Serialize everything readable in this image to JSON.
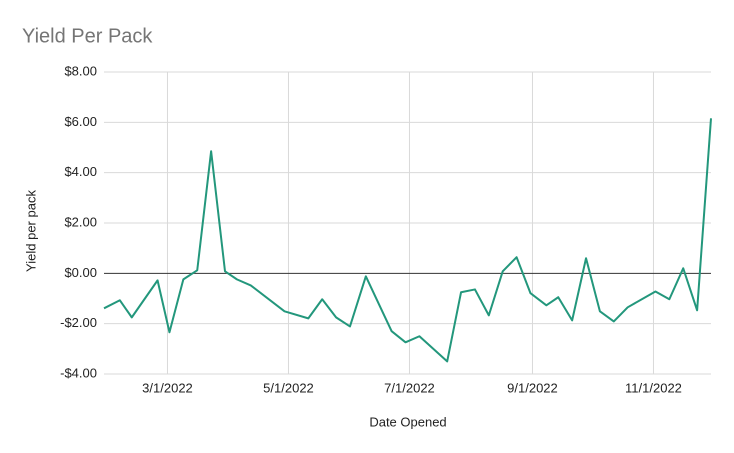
{
  "chart_data": {
    "type": "line",
    "title": "Yield Per Pack",
    "x_label": "Date Opened",
    "y_label": "Yield per pack",
    "x": [
      "1/28/2022",
      "2/5/2022",
      "2/11/2022",
      "2/24/2022",
      "3/2/2022",
      "3/9/2022",
      "3/16/2022",
      "3/23/2022",
      "3/30/2022",
      "4/5/2022",
      "4/12/2022",
      "4/29/2022",
      "5/11/2022",
      "5/18/2022",
      "5/25/2022",
      "6/1/2022",
      "6/9/2022",
      "6/22/2022",
      "6/29/2022",
      "7/6/2022",
      "7/20/2022",
      "7/27/2022",
      "8/3/2022",
      "8/10/2022",
      "8/17/2022",
      "8/24/2022",
      "8/31/2022",
      "9/8/2022",
      "9/14/2022",
      "9/21/2022",
      "9/28/2022",
      "10/5/2022",
      "10/12/2022",
      "10/19/2022",
      "11/2/2022",
      "11/9/2022",
      "11/16/2022",
      "11/23/2022",
      "11/30/2022"
    ],
    "series": [
      {
        "name": "Yield per pack",
        "color": "#23977c",
        "values": [
          -1.39,
          -1.07,
          -1.75,
          -0.28,
          -2.34,
          -0.24,
          0.12,
          4.85,
          0.08,
          -0.24,
          -0.48,
          -1.51,
          -1.79,
          -1.03,
          -1.75,
          -2.11,
          -0.12,
          -2.3,
          -2.74,
          -2.5,
          -3.5,
          -0.75,
          -0.64,
          -1.67,
          0.08,
          0.64,
          -0.79,
          -1.27,
          -0.95,
          -1.87,
          0.6,
          -1.51,
          -1.91,
          -1.35,
          -0.72,
          -1.03,
          0.2,
          -1.47,
          6.16
        ]
      }
    ],
    "xlim": [
      "1/28/2022",
      "11/30/2022"
    ],
    "xticks": [
      "3/1/2022",
      "5/1/2022",
      "7/1/2022",
      "9/1/2022",
      "11/1/2022"
    ],
    "ylim": [
      -4,
      8
    ],
    "yticks": [
      {
        "value": -4,
        "label": "-$4.00"
      },
      {
        "value": -2,
        "label": "-$2.00"
      },
      {
        "value": 0,
        "label": "$0.00"
      },
      {
        "value": 2,
        "label": "$2.00"
      },
      {
        "value": 4,
        "label": "$4.00"
      },
      {
        "value": 6,
        "label": "$6.00"
      },
      {
        "value": 8,
        "label": "$8.00"
      }
    ],
    "grid": true
  }
}
